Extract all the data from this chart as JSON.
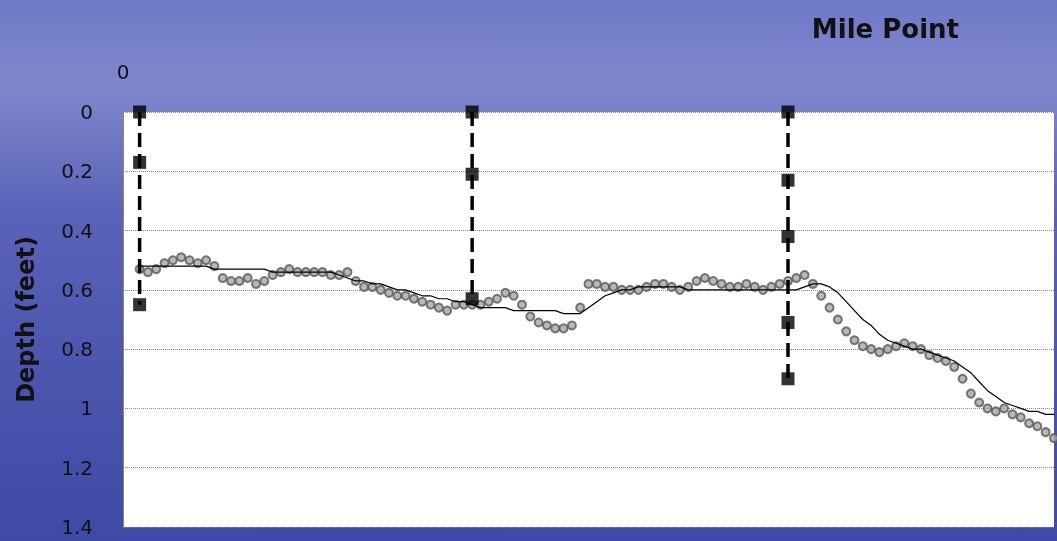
{
  "chart_data": {
    "type": "scatter",
    "xlabel": "Mile Point",
    "ylabel": "Depth (feet)",
    "categories": [
      "0",
      null,
      null,
      null,
      null,
      null,
      null,
      null,
      null,
      null,
      null,
      null,
      null,
      null,
      null,
      null,
      null,
      null,
      null,
      null,
      null,
      null,
      null,
      null,
      null,
      null,
      null,
      null,
      null,
      null,
      null,
      null,
      null,
      null,
      null,
      null,
      null,
      null,
      null,
      null,
      null,
      null,
      null,
      null,
      null,
      null,
      null,
      null,
      null,
      null,
      null,
      null,
      null,
      null,
      null,
      null,
      null,
      null,
      null,
      null,
      null,
      null,
      null,
      null,
      null,
      null,
      null,
      null,
      null,
      null,
      null,
      null,
      null,
      null,
      null,
      null,
      null,
      null,
      null,
      null,
      null,
      null,
      null,
      null,
      null,
      null,
      null,
      null,
      null,
      null,
      null,
      null,
      null,
      null,
      null,
      null,
      null,
      null,
      null,
      null,
      null,
      null,
      null,
      null,
      null,
      null,
      null,
      null,
      null,
      null,
      null,
      null,
      null
    ],
    "series": [
      {
        "color": "#595959",
        "marker": "circle",
        "values": [
          null,
          null,
          0.53,
          0.54,
          0.53,
          0.51,
          0.5,
          0.49,
          0.5,
          0.51,
          0.5,
          0.52,
          0.56,
          0.57,
          0.57,
          0.56,
          0.58,
          0.57,
          0.55,
          0.54,
          0.53,
          0.54,
          0.54,
          0.54,
          0.54,
          0.55,
          0.55,
          0.54,
          0.57,
          0.59,
          0.59,
          0.6,
          0.61,
          0.62,
          0.62,
          0.63,
          0.64,
          0.65,
          0.66,
          0.67,
          0.65,
          0.65,
          0.65,
          0.65,
          0.64,
          0.63,
          0.61,
          0.62,
          0.65,
          0.69,
          0.71,
          0.72,
          0.73,
          0.73,
          0.72,
          0.66,
          0.58,
          0.58,
          0.59,
          0.59,
          0.6,
          0.6,
          0.6,
          0.59,
          0.58,
          0.58,
          0.59,
          0.6,
          0.59,
          0.57,
          0.56,
          0.57,
          0.58,
          0.59,
          0.59,
          0.58,
          0.59,
          0.6,
          0.59,
          0.58,
          0.57,
          0.56,
          0.55,
          0.58,
          0.62,
          0.66,
          0.7,
          0.74,
          0.77,
          0.79,
          0.8,
          0.81,
          0.8,
          0.79,
          0.78,
          0.79,
          0.8,
          0.82,
          0.83,
          0.84,
          0.86,
          0.9,
          0.95,
          0.98,
          1.0,
          1.01,
          1.0,
          1.02,
          1.03,
          1.05,
          1.06,
          1.08,
          1.1
        ]
      },
      {
        "type": "line",
        "color": "#000000",
        "marker": "none",
        "line_style": "solid",
        "values": [
          null,
          null,
          0.52,
          0.52,
          0.52,
          0.52,
          0.52,
          0.52,
          0.52,
          0.52,
          0.52,
          0.53,
          0.53,
          0.53,
          0.53,
          0.53,
          0.53,
          0.53,
          0.54,
          0.54,
          0.54,
          0.54,
          0.54,
          0.54,
          0.54,
          0.54,
          0.55,
          0.56,
          0.57,
          0.57,
          0.58,
          0.58,
          0.59,
          0.6,
          0.6,
          0.61,
          0.62,
          0.62,
          0.63,
          0.63,
          0.64,
          0.64,
          0.65,
          0.66,
          0.66,
          0.66,
          0.66,
          0.67,
          0.67,
          0.67,
          0.67,
          0.67,
          0.67,
          0.68,
          0.68,
          0.68,
          0.66,
          0.64,
          0.62,
          0.61,
          0.6,
          0.6,
          0.59,
          0.59,
          0.59,
          0.59,
          0.59,
          0.59,
          0.6,
          0.6,
          0.6,
          0.6,
          0.6,
          0.6,
          0.6,
          0.6,
          0.6,
          0.6,
          0.6,
          0.6,
          0.6,
          0.6,
          0.59,
          0.58,
          0.58,
          0.59,
          0.61,
          0.64,
          0.67,
          0.7,
          0.72,
          0.75,
          0.77,
          0.78,
          0.79,
          0.8,
          0.8,
          0.81,
          0.82,
          0.83,
          0.84,
          0.86,
          0.88,
          0.91,
          0.94,
          0.96,
          0.98,
          0.99,
          1.0,
          1.01,
          1.01,
          1.02,
          1.02
        ]
      },
      {
        "type": "scatter",
        "color": "#000000",
        "marker": "square",
        "line_style": "dashed",
        "values": [
          null,
          null,
          0,
          null,
          null,
          null,
          null,
          null,
          null,
          null,
          null,
          null,
          null,
          null,
          null,
          null,
          null,
          null,
          null,
          null,
          null,
          null,
          null,
          null,
          null,
          null,
          null,
          null,
          null,
          null,
          null,
          null,
          null,
          null,
          null,
          null,
          null,
          null,
          null,
          null,
          null,
          null,
          0,
          null,
          null,
          null,
          null,
          null,
          null,
          null,
          null,
          null,
          null,
          null,
          null,
          null,
          null,
          null,
          null,
          null,
          null,
          null,
          null,
          null,
          null,
          null,
          null,
          null,
          null,
          null,
          null,
          null,
          null,
          null,
          null,
          null,
          null,
          null,
          null,
          null,
          0,
          null,
          null,
          null,
          null,
          null,
          null,
          null,
          null,
          null,
          null,
          null,
          null,
          null,
          null,
          null,
          null,
          null,
          null,
          null,
          null,
          null,
          null,
          null,
          null,
          null,
          null,
          null,
          null,
          null,
          null,
          null,
          null
        ]
      },
      {
        "type": "scatter",
        "color": "#000000",
        "marker": "square",
        "line_style": "dashed",
        "values": [
          null,
          null,
          0.17,
          null,
          null,
          null,
          null,
          null,
          null,
          null,
          null,
          null,
          null,
          null,
          null,
          null,
          null,
          null,
          null,
          null,
          null,
          null,
          null,
          null,
          null,
          null,
          null,
          null,
          null,
          null,
          null,
          null,
          null,
          null,
          null,
          null,
          null,
          null,
          null,
          null,
          null,
          null,
          0.21,
          null,
          null,
          null,
          null,
          null,
          null,
          null,
          null,
          null,
          null,
          null,
          null,
          null,
          null,
          null,
          null,
          null,
          null,
          null,
          null,
          null,
          null,
          null,
          null,
          null,
          null,
          null,
          null,
          null,
          null,
          null,
          null,
          null,
          null,
          null,
          null,
          null,
          0.23,
          null,
          null,
          null,
          null,
          null,
          null,
          null,
          null,
          null,
          null,
          null,
          null,
          null,
          null,
          null,
          null,
          null,
          null,
          null,
          null,
          null,
          null,
          null,
          null,
          null,
          null,
          null,
          null,
          null,
          null,
          null,
          null
        ]
      },
      {
        "type": "scatter",
        "color": "#000000",
        "marker": "square",
        "line_style": "dashed",
        "values": [
          null,
          null,
          0.65,
          null,
          null,
          null,
          null,
          null,
          null,
          null,
          null,
          null,
          null,
          null,
          null,
          null,
          null,
          null,
          null,
          null,
          null,
          null,
          null,
          null,
          null,
          null,
          null,
          null,
          null,
          null,
          null,
          null,
          null,
          null,
          null,
          null,
          null,
          null,
          null,
          null,
          null,
          null,
          0.63,
          null,
          null,
          null,
          null,
          null,
          null,
          null,
          null,
          null,
          null,
          null,
          null,
          null,
          null,
          null,
          null,
          null,
          null,
          null,
          null,
          null,
          null,
          null,
          null,
          null,
          null,
          null,
          null,
          null,
          null,
          null,
          null,
          null,
          null,
          null,
          null,
          null,
          0.42,
          null,
          null,
          null,
          null,
          null,
          null,
          null,
          null,
          null,
          null,
          null,
          null,
          null,
          null,
          null,
          null,
          null,
          null,
          null,
          null,
          null,
          null,
          null,
          null,
          null,
          null,
          null,
          null,
          null,
          null,
          null,
          null
        ]
      },
      {
        "type": "scatter",
        "color": "#000000",
        "marker": "square",
        "line_style": "dashed",
        "values": [
          null,
          null,
          null,
          null,
          null,
          null,
          null,
          null,
          null,
          null,
          null,
          null,
          null,
          null,
          null,
          null,
          null,
          null,
          null,
          null,
          null,
          null,
          null,
          null,
          null,
          null,
          null,
          null,
          null,
          null,
          null,
          null,
          null,
          null,
          null,
          null,
          null,
          null,
          null,
          null,
          null,
          null,
          null,
          null,
          null,
          null,
          null,
          null,
          null,
          null,
          null,
          null,
          null,
          null,
          null,
          null,
          null,
          null,
          null,
          null,
          null,
          null,
          null,
          null,
          null,
          null,
          null,
          null,
          null,
          null,
          null,
          null,
          null,
          null,
          null,
          null,
          null,
          null,
          null,
          null,
          0.71,
          null,
          null,
          null,
          null,
          null,
          null,
          null,
          null,
          null,
          null,
          null,
          null,
          null,
          null,
          null,
          null,
          null,
          null,
          null,
          null,
          null,
          null,
          null,
          null,
          null,
          null,
          null,
          null,
          null,
          null,
          null,
          null
        ]
      },
      {
        "type": "scatter",
        "color": "#000000",
        "marker": "square",
        "line_style": "dashed",
        "values": [
          null,
          null,
          null,
          null,
          null,
          null,
          null,
          null,
          null,
          null,
          null,
          null,
          null,
          null,
          null,
          null,
          null,
          null,
          null,
          null,
          null,
          null,
          null,
          null,
          null,
          null,
          null,
          null,
          null,
          null,
          null,
          null,
          null,
          null,
          null,
          null,
          null,
          null,
          null,
          null,
          null,
          null,
          null,
          null,
          null,
          null,
          null,
          null,
          null,
          null,
          null,
          null,
          null,
          null,
          null,
          null,
          null,
          null,
          null,
          null,
          null,
          null,
          null,
          null,
          null,
          null,
          null,
          null,
          null,
          null,
          null,
          null,
          null,
          null,
          null,
          null,
          null,
          null,
          null,
          null,
          0.9,
          null,
          null,
          null,
          null,
          null,
          null,
          null,
          null,
          null,
          null,
          null,
          null,
          null,
          null,
          null,
          null,
          null,
          null,
          null,
          null,
          null,
          null,
          null,
          null,
          null,
          null,
          null,
          null,
          null,
          null,
          null,
          null
        ]
      }
    ],
    "ylim": [
      1.4,
      0
    ],
    "yticks": [
      0,
      0.2,
      0.4,
      0.6,
      0.8,
      1,
      1.2,
      1.4
    ],
    "grid": "y"
  }
}
